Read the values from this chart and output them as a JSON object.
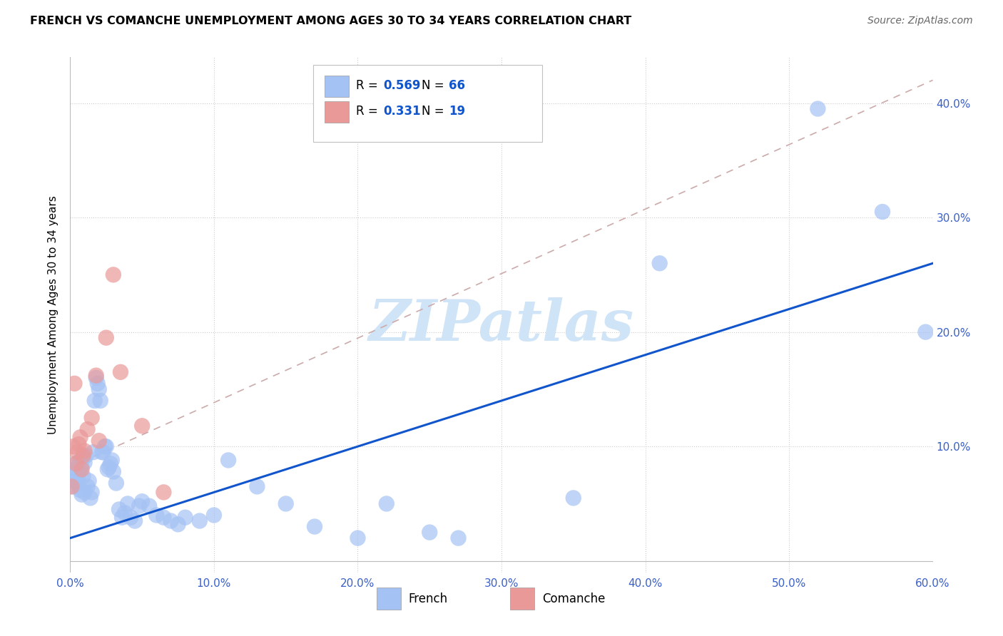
{
  "title": "FRENCH VS COMANCHE UNEMPLOYMENT AMONG AGES 30 TO 34 YEARS CORRELATION CHART",
  "source": "Source: ZipAtlas.com",
  "ylabel": "Unemployment Among Ages 30 to 34 years",
  "xlim": [
    0.0,
    0.6
  ],
  "ylim": [
    -0.01,
    0.44
  ],
  "xticks": [
    0.0,
    0.1,
    0.2,
    0.3,
    0.4,
    0.5,
    0.6
  ],
  "yticks": [
    0.0,
    0.1,
    0.2,
    0.3,
    0.4
  ],
  "xticklabels": [
    "0.0%",
    "10.0%",
    "20.0%",
    "30.0%",
    "40.0%",
    "50.0%",
    "60.0%"
  ],
  "yticklabels_right": [
    "",
    "10.0%",
    "20.0%",
    "30.0%",
    "40.0%"
  ],
  "french_color": "#a4c2f4",
  "comanche_color": "#ea9999",
  "french_line_color": "#1155cc",
  "comanche_line_color": "#cc4444",
  "watermark_color": "#d0e4f7",
  "french_R": "0.569",
  "french_N": "66",
  "comanche_R": "0.331",
  "comanche_N": "19",
  "french_x": [
    0.002,
    0.003,
    0.003,
    0.004,
    0.004,
    0.005,
    0.005,
    0.006,
    0.007,
    0.007,
    0.008,
    0.008,
    0.009,
    0.009,
    0.01,
    0.01,
    0.011,
    0.012,
    0.013,
    0.014,
    0.015,
    0.016,
    0.017,
    0.018,
    0.019,
    0.02,
    0.021,
    0.022,
    0.023,
    0.024,
    0.025,
    0.026,
    0.027,
    0.028,
    0.029,
    0.03,
    0.032,
    0.034,
    0.036,
    0.038,
    0.04,
    0.042,
    0.045,
    0.048,
    0.05,
    0.055,
    0.06,
    0.065,
    0.07,
    0.075,
    0.08,
    0.09,
    0.1,
    0.11,
    0.13,
    0.15,
    0.17,
    0.2,
    0.22,
    0.25,
    0.27,
    0.35,
    0.41,
    0.52,
    0.565,
    0.595
  ],
  "french_y": [
    0.065,
    0.075,
    0.08,
    0.07,
    0.085,
    0.068,
    0.072,
    0.078,
    0.062,
    0.088,
    0.058,
    0.082,
    0.074,
    0.09,
    0.06,
    0.086,
    0.092,
    0.065,
    0.07,
    0.055,
    0.06,
    0.095,
    0.14,
    0.16,
    0.155,
    0.15,
    0.14,
    0.095,
    0.095,
    0.1,
    0.1,
    0.08,
    0.082,
    0.085,
    0.088,
    0.078,
    0.068,
    0.045,
    0.038,
    0.042,
    0.05,
    0.038,
    0.035,
    0.048,
    0.052,
    0.048,
    0.04,
    0.038,
    0.035,
    0.032,
    0.038,
    0.035,
    0.04,
    0.088,
    0.065,
    0.05,
    0.03,
    0.02,
    0.05,
    0.025,
    0.02,
    0.055,
    0.26,
    0.395,
    0.305,
    0.2
  ],
  "comanche_x": [
    0.001,
    0.002,
    0.003,
    0.004,
    0.005,
    0.006,
    0.007,
    0.008,
    0.009,
    0.01,
    0.012,
    0.015,
    0.018,
    0.02,
    0.025,
    0.03,
    0.035,
    0.05,
    0.065
  ],
  "comanche_y": [
    0.065,
    0.1,
    0.155,
    0.085,
    0.095,
    0.102,
    0.108,
    0.08,
    0.092,
    0.096,
    0.115,
    0.125,
    0.162,
    0.105,
    0.195,
    0.25,
    0.165,
    0.118,
    0.06
  ],
  "french_line_x0": 0.0,
  "french_line_y0": 0.02,
  "french_line_x1": 0.6,
  "french_line_y1": 0.26,
  "comanche_line_x0": 0.0,
  "comanche_line_y0": 0.082,
  "comanche_line_x1": 0.6,
  "comanche_line_y1": 0.42
}
